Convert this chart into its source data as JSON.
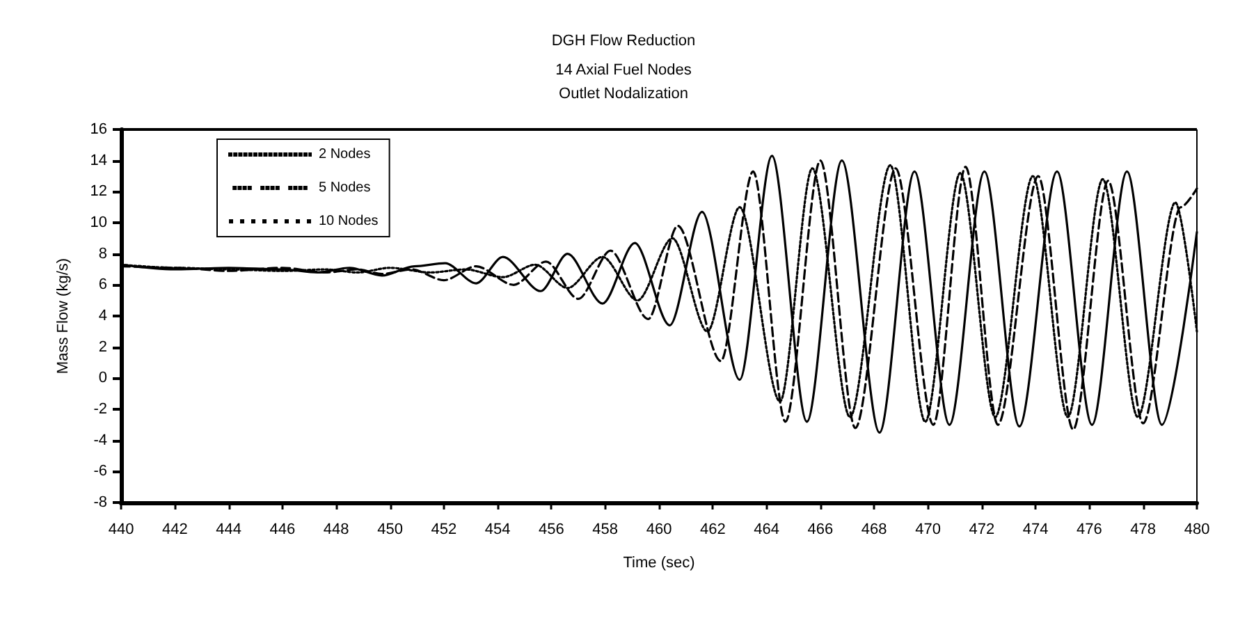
{
  "chart_data": {
    "type": "line",
    "title": "DGH Flow Reduction",
    "subtitle": "14 Axial Fuel Nodes\nOutlet Nodalization",
    "xlabel": "Time (sec)",
    "ylabel": "Mass Flow (kg/s)",
    "xlim": [
      440,
      480
    ],
    "xticks": [
      440,
      442,
      444,
      446,
      448,
      450,
      452,
      454,
      456,
      458,
      460,
      462,
      464,
      466,
      468,
      470,
      472,
      474,
      476,
      478,
      480
    ],
    "ylim": [
      -8,
      16
    ],
    "yticks": [
      -8,
      -6,
      -4,
      -2,
      0,
      2,
      4,
      6,
      8,
      10,
      12,
      14,
      16
    ],
    "grid": false,
    "legend": "top left",
    "series": [
      {
        "name": "2 Nodes",
        "color": "#000000",
        "line_style": "solid",
        "x": [
          440,
          442,
          444,
          446,
          447.3,
          448.5,
          449.7,
          450.9,
          452.05,
          453.2,
          454.2,
          455.6,
          456.6,
          457.9,
          459.1,
          460.4,
          461.6,
          463.0,
          464.2,
          465.5,
          466.8,
          468.2,
          469.5,
          470.8,
          472.1,
          473.4,
          474.8,
          476.1,
          477.4,
          478.7,
          480
        ],
        "values": [
          7.3,
          7.0,
          7.1,
          7.0,
          6.8,
          7.1,
          6.6,
          7.2,
          7.4,
          6.1,
          7.8,
          5.6,
          8.0,
          4.8,
          8.7,
          3.4,
          10.7,
          -0.1,
          14.3,
          -2.8,
          14.0,
          -3.5,
          13.3,
          -3.0,
          13.3,
          -3.1,
          13.3,
          -3.0,
          13.3,
          -3.0,
          9.4
        ]
      },
      {
        "name": "5 Nodes",
        "color": "#000000",
        "line_style": "dashed",
        "x": [
          440,
          442,
          444,
          446,
          447.6,
          448.8,
          449.7,
          450.8,
          452.0,
          453.2,
          454.6,
          455.8,
          457.0,
          458.2,
          459.6,
          460.7,
          462.3,
          463.5,
          464.7,
          466.0,
          467.3,
          468.8,
          470.2,
          471.4,
          472.6,
          474.1,
          475.4,
          476.7,
          478.0,
          479.4,
          480
        ],
        "values": [
          7.2,
          7.1,
          6.9,
          7.1,
          6.8,
          7.0,
          6.7,
          7.0,
          6.3,
          7.2,
          6.0,
          7.5,
          5.1,
          8.2,
          3.8,
          9.8,
          1.1,
          13.3,
          -2.8,
          14.0,
          -3.2,
          13.5,
          -3.0,
          13.6,
          -3.0,
          13.0,
          -3.3,
          12.7,
          -2.9,
          11.0,
          12.2
        ]
      },
      {
        "name": "10 Nodes",
        "color": "#000000",
        "line_style": "dotted",
        "x": [
          440,
          442,
          444,
          446,
          447.6,
          448.8,
          450,
          451.5,
          452.8,
          454.2,
          455.4,
          456.6,
          457.9,
          459.2,
          460.5,
          461.8,
          463.0,
          464.5,
          465.7,
          467.1,
          468.6,
          469.9,
          471.2,
          472.5,
          473.9,
          475.2,
          476.5,
          477.8,
          479.2,
          480
        ],
        "values": [
          7.3,
          7.1,
          7.0,
          6.9,
          7.0,
          6.8,
          7.1,
          6.8,
          7.0,
          6.5,
          7.3,
          5.8,
          7.8,
          5.0,
          9.0,
          3.0,
          11.0,
          -1.5,
          13.5,
          -2.5,
          13.7,
          -2.8,
          13.2,
          -2.5,
          13.0,
          -2.5,
          12.8,
          -2.5,
          11.3,
          3.0
        ]
      }
    ]
  }
}
